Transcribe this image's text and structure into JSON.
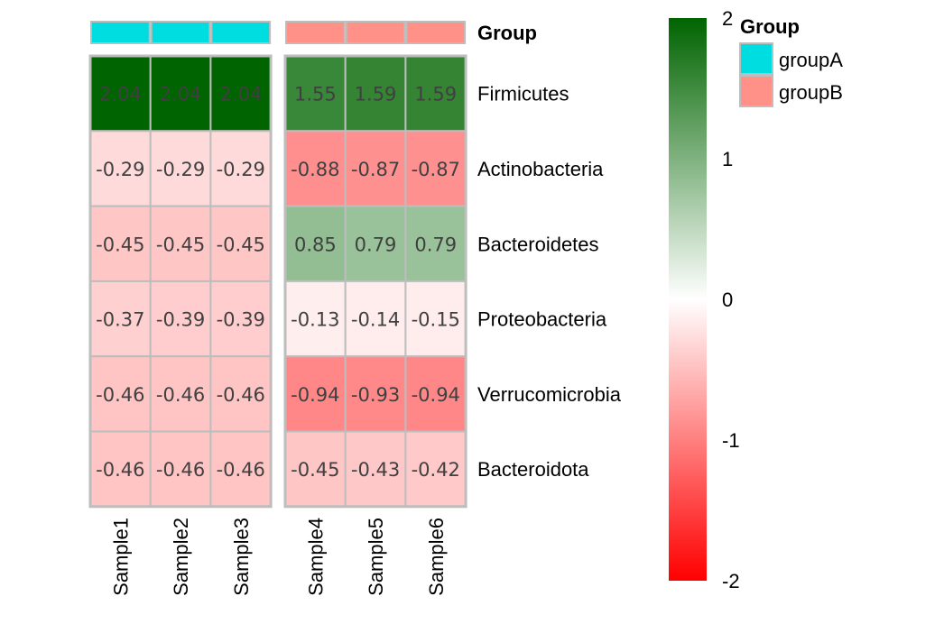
{
  "chart_data": {
    "type": "heatmap",
    "rows": [
      "Firmicutes",
      "Actinobacteria",
      "Bacteroidetes",
      "Proteobacteria",
      "Verrucomicrobia",
      "Bacteroidota"
    ],
    "columns": [
      "Sample1",
      "Sample2",
      "Sample3",
      "Sample4",
      "Sample5",
      "Sample6"
    ],
    "values": [
      [
        2.04,
        2.04,
        2.04,
        1.55,
        1.59,
        1.59
      ],
      [
        -0.29,
        -0.29,
        -0.29,
        -0.88,
        -0.87,
        -0.87
      ],
      [
        -0.45,
        -0.45,
        -0.45,
        0.85,
        0.79,
        0.79
      ],
      [
        -0.37,
        -0.39,
        -0.39,
        -0.13,
        -0.14,
        -0.15
      ],
      [
        -0.46,
        -0.46,
        -0.46,
        -0.94,
        -0.93,
        -0.94
      ],
      [
        -0.46,
        -0.46,
        -0.46,
        -0.45,
        -0.43,
        -0.42
      ]
    ],
    "column_groups": [
      "groupA",
      "groupA",
      "groupA",
      "groupB",
      "groupB",
      "groupB"
    ],
    "annotation_label": "Group",
    "group_legend": {
      "title": "Group",
      "entries": [
        {
          "name": "groupA",
          "color": "#00DDE0"
        },
        {
          "name": "groupB",
          "color": "#FF9189"
        }
      ]
    },
    "color_scale": {
      "min": -2,
      "mid": 0,
      "max": 2,
      "low_color": "#FF0000",
      "mid_color": "#FFFFFF",
      "high_color": "#006400",
      "ticks": [
        "2",
        "1",
        "0",
        "-1",
        "-2"
      ]
    },
    "border_color": "#BDBDBD",
    "cell_text_color": "#404040"
  }
}
